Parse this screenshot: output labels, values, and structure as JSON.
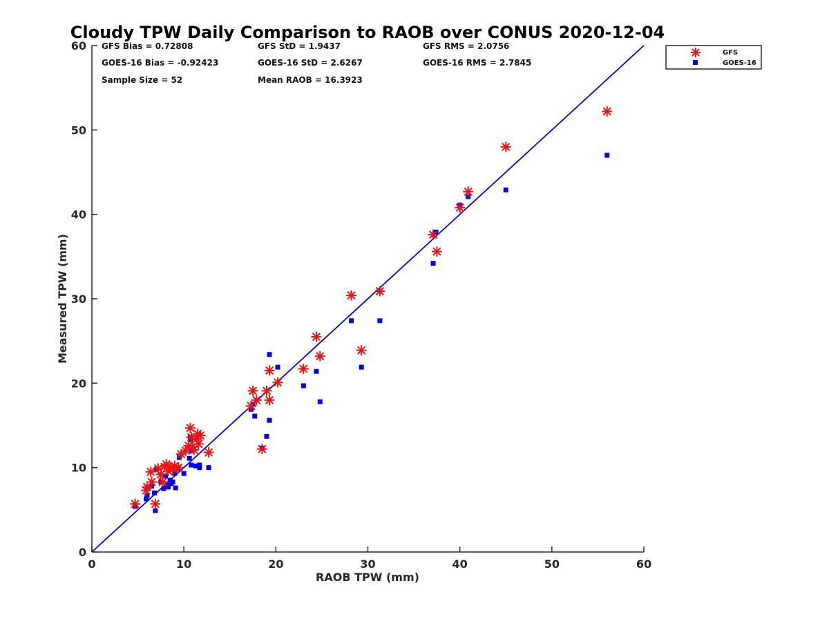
{
  "chart_data": {
    "type": "scatter",
    "title": "Cloudy TPW Daily Comparison to RAOB over CONUS 2020-12-04",
    "xlabel": "RAOB TPW (mm)",
    "ylabel": "Measured TPW (mm)",
    "xlim": [
      0,
      60
    ],
    "ylim": [
      0,
      60
    ],
    "xticks": [
      "0",
      "10",
      "20",
      "30",
      "40",
      "50",
      "60"
    ],
    "yticks": [
      "0",
      "10",
      "20",
      "30",
      "40",
      "50",
      "60"
    ],
    "grid": false,
    "legend_position": "top-right, outside plot",
    "reference_line": {
      "type": "one-to-one",
      "color": "#0000dd"
    },
    "stats": {
      "gfs_bias": "GFS Bias = 0.72808",
      "gfs_std": "GFS StD = 1.9437",
      "gfs_rms": "GFS RMS = 2.0756",
      "goes_bias": "GOES-16 Bias = -0.92423",
      "goes_std": "GOES-16 StD = 2.6267",
      "goes_rms": "GOES-16 RMS = 2.7845",
      "sample_size": "Sample Size = 52",
      "mean_raob": "Mean RAOB = 16.3923"
    },
    "series": [
      {
        "name": "GFS",
        "marker": "asterisk",
        "color": "#ee1111",
        "points": [
          [
            4.7,
            5.7
          ],
          [
            5.9,
            7.3
          ],
          [
            6.0,
            7.7
          ],
          [
            6.4,
            9.5
          ],
          [
            6.5,
            8.3
          ],
          [
            6.9,
            5.7
          ],
          [
            7.2,
            9.9
          ],
          [
            7.5,
            9.2
          ],
          [
            7.7,
            8.3
          ],
          [
            7.9,
            10.1
          ],
          [
            8.1,
            10.4
          ],
          [
            8.3,
            9.6
          ],
          [
            8.5,
            10.0
          ],
          [
            8.8,
            9.8
          ],
          [
            9.0,
            10.2
          ],
          [
            9.4,
            10.0
          ],
          [
            9.7,
            11.6
          ],
          [
            10.2,
            12.0
          ],
          [
            10.5,
            12.6
          ],
          [
            10.7,
            14.7
          ],
          [
            10.8,
            13.6
          ],
          [
            10.9,
            12.4
          ],
          [
            11.1,
            12.1
          ],
          [
            11.4,
            13.4
          ],
          [
            11.5,
            14.0
          ],
          [
            11.6,
            12.8
          ],
          [
            11.8,
            13.8
          ],
          [
            12.7,
            11.8
          ],
          [
            17.3,
            17.3
          ],
          [
            17.5,
            19.1
          ],
          [
            17.9,
            18.0
          ],
          [
            18.5,
            12.2
          ],
          [
            19.0,
            19.1
          ],
          [
            19.3,
            21.5
          ],
          [
            19.3,
            18.0
          ],
          [
            20.2,
            20.1
          ],
          [
            23.0,
            21.7
          ],
          [
            24.4,
            25.5
          ],
          [
            24.8,
            23.2
          ],
          [
            28.2,
            30.4
          ],
          [
            29.3,
            23.9
          ],
          [
            31.3,
            30.9
          ],
          [
            37.1,
            37.6
          ],
          [
            37.5,
            35.6
          ],
          [
            40.0,
            40.8
          ],
          [
            40.9,
            42.7
          ],
          [
            45.0,
            48.0
          ],
          [
            56.0,
            52.2
          ]
        ]
      },
      {
        "name": "GOES-16",
        "marker": "square",
        "color": "#0000ee",
        "points": [
          [
            4.7,
            5.4
          ],
          [
            5.9,
            6.3
          ],
          [
            6.0,
            6.7
          ],
          [
            6.5,
            7.8
          ],
          [
            6.8,
            7.0
          ],
          [
            6.9,
            4.9
          ],
          [
            7.0,
            9.8
          ],
          [
            7.5,
            8.3
          ],
          [
            7.8,
            7.5
          ],
          [
            8.0,
            9.0
          ],
          [
            8.1,
            7.9
          ],
          [
            8.3,
            7.7
          ],
          [
            8.5,
            8.5
          ],
          [
            8.6,
            8.1
          ],
          [
            8.8,
            8.3
          ],
          [
            9.0,
            9.3
          ],
          [
            9.1,
            7.6
          ],
          [
            9.4,
            9.9
          ],
          [
            9.5,
            11.2
          ],
          [
            10.0,
            9.3
          ],
          [
            10.6,
            11.1
          ],
          [
            10.7,
            13.3
          ],
          [
            10.7,
            13.6
          ],
          [
            10.8,
            10.3
          ],
          [
            10.8,
            12.0
          ],
          [
            11.3,
            10.2
          ],
          [
            11.7,
            10.3
          ],
          [
            11.7,
            10.0
          ],
          [
            12.7,
            10.0
          ],
          [
            17.3,
            16.9
          ],
          [
            17.5,
            17.5
          ],
          [
            17.7,
            16.1
          ],
          [
            18.5,
            12.3
          ],
          [
            19.0,
            13.7
          ],
          [
            19.3,
            15.6
          ],
          [
            19.3,
            23.4
          ],
          [
            20.2,
            21.9
          ],
          [
            23.0,
            19.7
          ],
          [
            24.4,
            21.4
          ],
          [
            24.8,
            17.8
          ],
          [
            28.2,
            27.4
          ],
          [
            29.3,
            21.9
          ],
          [
            31.3,
            27.4
          ],
          [
            37.1,
            34.2
          ],
          [
            37.4,
            37.9
          ],
          [
            40.0,
            41.1
          ],
          [
            40.9,
            42.1
          ],
          [
            45.0,
            42.9
          ],
          [
            56.0,
            47.0
          ]
        ]
      }
    ]
  }
}
